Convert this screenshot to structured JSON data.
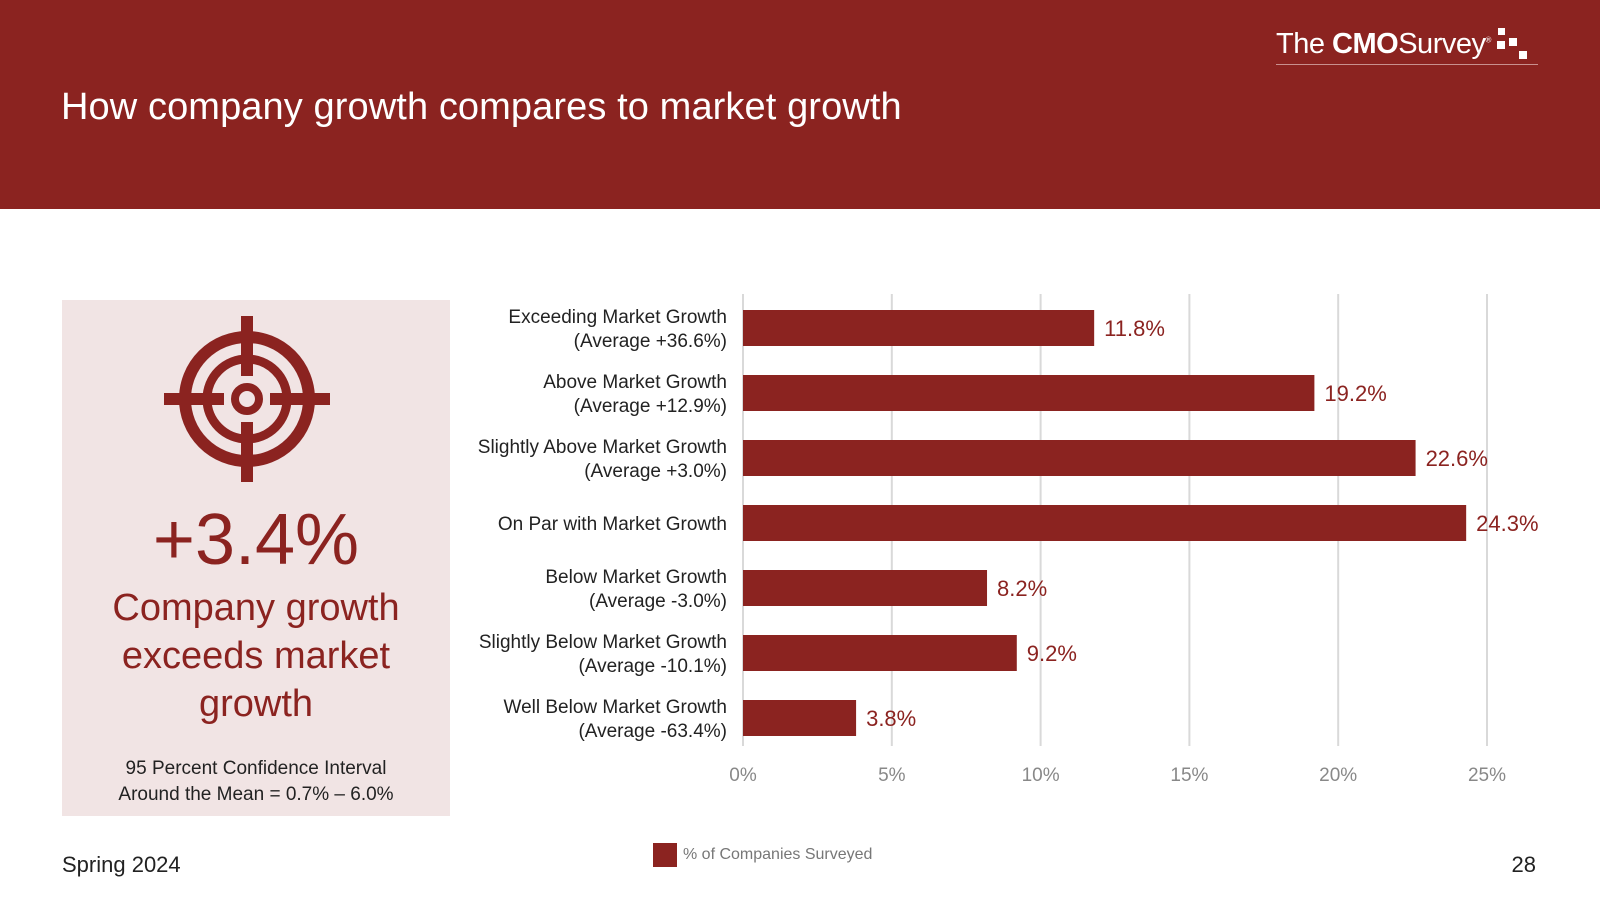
{
  "header": {
    "title": "How company growth compares to market growth",
    "logo": {
      "the": "The",
      "cmo": "CMO",
      "survey": "Survey",
      "mark": "®"
    }
  },
  "panel": {
    "icon": "target-icon",
    "headline_value": "+3.4%",
    "caption": "Company growth exceeds market growth",
    "ci_line1": "95 Percent Confidence Interval",
    "ci_line2": "Around the Mean = 0.7% – 6.0%"
  },
  "chart_data": {
    "type": "bar",
    "orientation": "horizontal",
    "categories": [
      [
        "Exceeding Market Growth",
        "(Average +36.6%)"
      ],
      [
        "Above Market Growth",
        "(Average +12.9%)"
      ],
      [
        "Slightly Above Market Growth",
        "(Average +3.0%)"
      ],
      [
        "On Par with Market Growth"
      ],
      [
        "Below Market Growth",
        "(Average -3.0%)"
      ],
      [
        "Slightly Below Market Growth",
        "(Average -10.1%)"
      ],
      [
        "Well Below Market Growth",
        "(Average -63.4%)"
      ]
    ],
    "values": [
      11.8,
      19.2,
      22.6,
      24.3,
      8.2,
      9.2,
      3.8
    ],
    "value_labels": [
      "11.8%",
      "19.2%",
      "22.6%",
      "24.3%",
      "8.2%",
      "9.2%",
      "3.8%"
    ],
    "xlim": [
      0,
      25
    ],
    "xticks": [
      0,
      5,
      10,
      15,
      20,
      25
    ],
    "xtick_labels": [
      "0%",
      "5%",
      "10%",
      "15%",
      "20%",
      "25%"
    ],
    "grid": true,
    "legend": "bottom",
    "series_name": "% of Companies Surveyed"
  },
  "colors": {
    "accent": "#8B2320",
    "panel_bg": "#F1E4E4",
    "grid": "#D9D9D9"
  },
  "footer": {
    "season": "Spring 2024",
    "page_number": "28"
  }
}
